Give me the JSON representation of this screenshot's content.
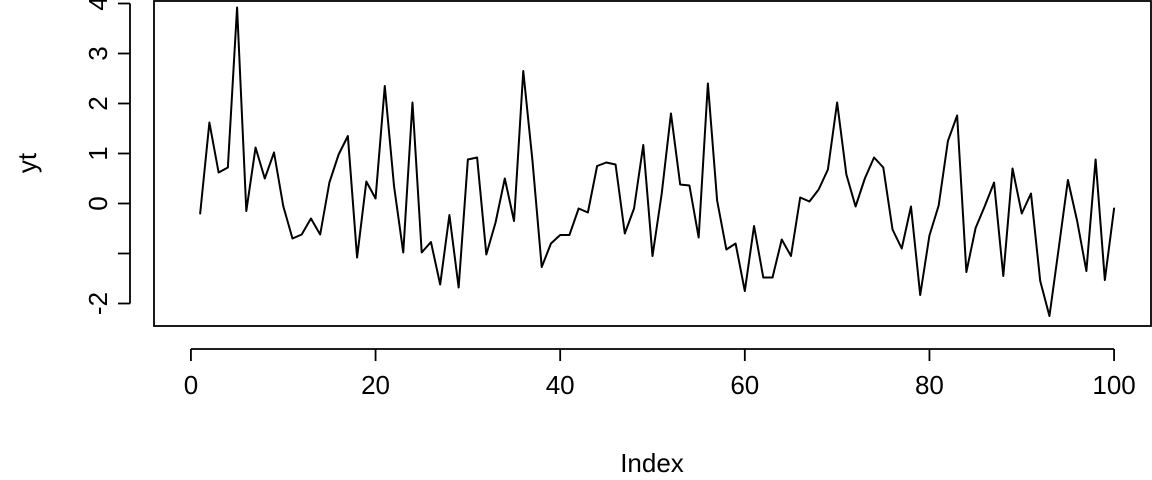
{
  "chart_data": {
    "type": "line",
    "xlabel": "Index",
    "ylabel": "yt",
    "xlim": [
      -4,
      104
    ],
    "ylim": [
      -2.45,
      4.05
    ],
    "x_ticks": [
      0,
      20,
      40,
      60,
      80,
      100
    ],
    "y_ticks": [
      -2,
      -1,
      0,
      1,
      2,
      3,
      4
    ],
    "y_tick_labels": [
      "-2",
      "",
      "0",
      "1",
      "2",
      "3",
      "4"
    ],
    "grid": false,
    "line_color": "#000000",
    "series": [
      {
        "x": [
          1,
          2,
          3,
          4,
          5,
          6,
          7,
          8,
          9,
          10,
          11,
          12,
          13,
          14,
          15,
          16,
          17,
          18,
          19,
          20,
          21,
          22,
          23,
          24,
          25,
          26,
          27,
          28,
          29,
          30,
          31,
          32,
          33,
          34,
          35,
          36,
          37,
          38,
          39,
          40,
          41,
          42,
          43,
          44,
          45,
          46,
          47,
          48,
          49,
          50,
          51,
          52,
          53,
          54,
          55,
          56,
          57,
          58,
          59,
          60,
          61,
          62,
          63,
          64,
          65,
          66,
          67,
          68,
          69,
          70,
          71,
          72,
          73,
          74,
          75,
          76,
          77,
          78,
          79,
          80,
          81,
          82,
          83,
          84,
          85,
          86,
          87,
          88,
          89,
          90,
          91,
          92,
          93,
          94,
          95,
          96,
          97,
          98,
          99,
          100
        ],
        "values": [
          -0.2,
          1.62,
          0.62,
          0.72,
          3.92,
          -0.15,
          1.12,
          0.5,
          1.02,
          -0.05,
          -0.7,
          -0.62,
          -0.3,
          -0.62,
          0.42,
          0.98,
          1.35,
          -1.08,
          0.44,
          0.1,
          2.35,
          0.35,
          -0.98,
          2.02,
          -0.98,
          -0.77,
          -1.62,
          -0.23,
          -1.68,
          0.88,
          0.92,
          -1.02,
          -0.38,
          0.5,
          -0.35,
          2.65,
          0.85,
          -1.27,
          -0.8,
          -0.63,
          -0.63,
          -0.1,
          -0.18,
          0.75,
          0.82,
          0.78,
          -0.6,
          -0.1,
          1.17,
          -1.05,
          0.2,
          1.8,
          0.38,
          0.36,
          -0.68,
          2.4,
          0.06,
          -0.92,
          -0.8,
          -1.75,
          -0.45,
          -1.48,
          -1.48,
          -0.72,
          -1.05,
          0.12,
          0.04,
          0.28,
          0.68,
          2.02,
          0.58,
          -0.06,
          0.5,
          0.92,
          0.72,
          -0.52,
          -0.9,
          -0.06,
          -1.83,
          -0.64,
          -0.04,
          1.25,
          1.76,
          -1.37,
          -0.49,
          -0.05,
          0.42,
          -1.45,
          0.7,
          -0.2,
          0.2,
          -1.55,
          -2.25,
          -0.9,
          0.47,
          -0.35,
          -1.35,
          0.88,
          -1.53,
          -0.1
        ]
      }
    ]
  }
}
